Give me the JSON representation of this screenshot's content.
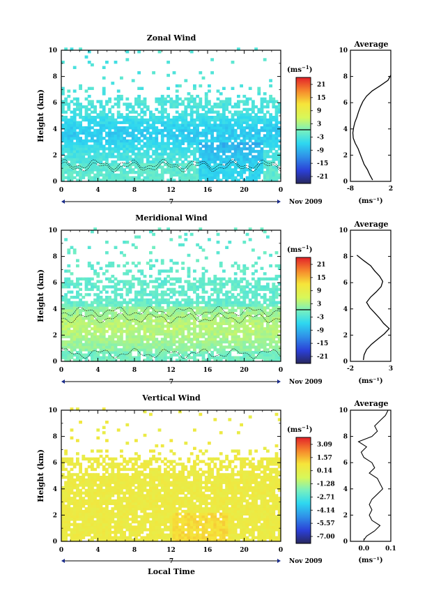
{
  "xlabel": "Local Time",
  "date_label": "Nov 2009",
  "day_label": "7",
  "chart_data": [
    {
      "type": "heatmap",
      "title": "Zonal Wind",
      "ylabel": "Height (km)",
      "xlim": [
        0,
        24
      ],
      "ylim": [
        0,
        10
      ],
      "x_ticks": [
        "0",
        "4",
        "8",
        "12",
        "16",
        "20",
        "0"
      ],
      "y_ticks": [
        "0",
        "2",
        "4",
        "6",
        "8",
        "10"
      ],
      "colorbar": {
        "unit_base": "(ms",
        "unit_exp": "−1",
        "unit_close": ")",
        "ticks": [
          "21",
          "15",
          "9",
          "3",
          "-3",
          "-9",
          "-15",
          "-21"
        ],
        "range": [
          -24,
          24
        ]
      },
      "avg": {
        "title": "Average",
        "xunit": "(ms⁻¹)",
        "xticks": [
          "-8",
          "2"
        ],
        "xlim": [
          -8,
          2
        ],
        "yticks": [
          "0",
          "2",
          "4",
          "6",
          "8",
          "10"
        ],
        "profile": [
          [
            0.1,
            -2.5
          ],
          [
            0.5,
            -3.2
          ],
          [
            0.9,
            -3.8
          ],
          [
            1.3,
            -4.6
          ],
          [
            1.7,
            -5.1
          ],
          [
            2.1,
            -5.6
          ],
          [
            2.5,
            -6.1
          ],
          [
            2.9,
            -6.8
          ],
          [
            3.3,
            -7.3
          ],
          [
            3.7,
            -7.4
          ],
          [
            4.1,
            -7.2
          ],
          [
            4.5,
            -6.9
          ],
          [
            4.9,
            -6.4
          ],
          [
            5.3,
            -6.0
          ],
          [
            5.7,
            -5.5
          ],
          [
            6.1,
            -4.9
          ],
          [
            6.5,
            -4.0
          ],
          [
            6.9,
            -2.6
          ],
          [
            7.3,
            -0.6
          ],
          [
            7.7,
            1.3
          ],
          [
            8.1,
            2.0
          ]
        ]
      }
    },
    {
      "type": "heatmap",
      "title": "Meridional Wind",
      "ylabel": "Height (km)",
      "xlim": [
        0,
        24
      ],
      "ylim": [
        0,
        10
      ],
      "x_ticks": [
        "0",
        "4",
        "8",
        "12",
        "16",
        "20",
        "0"
      ],
      "y_ticks": [
        "0",
        "2",
        "4",
        "6",
        "8",
        "10"
      ],
      "colorbar": {
        "unit_base": "(ms",
        "unit_exp": "−1",
        "unit_close": ")",
        "ticks": [
          "21",
          "15",
          "9",
          "3",
          "-3",
          "-9",
          "-15",
          "-21"
        ],
        "range": [
          -24,
          24
        ]
      },
      "avg": {
        "title": "Average",
        "xunit": "(ms⁻¹)",
        "xticks": [
          "-2",
          "3"
        ],
        "xlim": [
          -2,
          3
        ],
        "yticks": [
          "0",
          "2",
          "4",
          "6",
          "8",
          "10"
        ],
        "profile": [
          [
            0.1,
            -0.4
          ],
          [
            0.5,
            -0.3
          ],
          [
            0.9,
            0.0
          ],
          [
            1.3,
            0.6
          ],
          [
            1.7,
            1.4
          ],
          [
            2.1,
            2.2
          ],
          [
            2.5,
            2.8
          ],
          [
            2.9,
            2.1
          ],
          [
            3.3,
            1.6
          ],
          [
            3.7,
            1.0
          ],
          [
            4.1,
            0.4
          ],
          [
            4.5,
            0.0
          ],
          [
            4.9,
            0.5
          ],
          [
            5.3,
            1.2
          ],
          [
            5.7,
            1.8
          ],
          [
            6.1,
            2.0
          ],
          [
            6.5,
            1.6
          ],
          [
            6.9,
            1.0
          ],
          [
            7.3,
            0.5
          ],
          [
            7.7,
            -0.4
          ],
          [
            8.1,
            -1.2
          ]
        ]
      }
    },
    {
      "type": "heatmap",
      "title": "Vertical Wind",
      "ylabel": "Height (km)",
      "xlim": [
        0,
        24
      ],
      "ylim": [
        0,
        10
      ],
      "x_ticks": [
        "0",
        "4",
        "8",
        "12",
        "16",
        "20",
        "0"
      ],
      "y_ticks": [
        "0",
        "2",
        "4",
        "6",
        "8",
        "10"
      ],
      "colorbar": {
        "unit_base": "(ms",
        "unit_exp": "−1",
        "unit_close": ")",
        "ticks": [
          "3.09",
          "1.57",
          "0.14",
          "-1.28",
          "-2.71",
          "-4.14",
          "-5.57",
          "-7.00"
        ],
        "range": [
          -7.7,
          3.8
        ]
      },
      "avg": {
        "title": "Average",
        "xunit": "(ms⁻¹)",
        "xticks": [
          "0.0",
          "0.1"
        ],
        "xlim": [
          -0.05,
          0.1
        ],
        "yticks": [
          "0",
          "2",
          "4",
          "6",
          "8",
          "10"
        ],
        "profile": [
          [
            0.1,
            0.0
          ],
          [
            0.4,
            0.01
          ],
          [
            0.8,
            0.04
          ],
          [
            1.2,
            0.06
          ],
          [
            1.6,
            0.03
          ],
          [
            2.0,
            0.02
          ],
          [
            2.4,
            0.03
          ],
          [
            2.8,
            0.02
          ],
          [
            3.2,
            0.03
          ],
          [
            3.6,
            0.05
          ],
          [
            4.0,
            0.07
          ],
          [
            4.4,
            0.06
          ],
          [
            4.8,
            0.05
          ],
          [
            5.2,
            0.02
          ],
          [
            5.6,
            0.04
          ],
          [
            6.0,
            0.03
          ],
          [
            6.4,
            0.0
          ],
          [
            6.8,
            -0.01
          ],
          [
            7.2,
            0.01
          ],
          [
            7.6,
            -0.02
          ],
          [
            8.0,
            0.03
          ],
          [
            8.4,
            0.05
          ],
          [
            8.8,
            0.04
          ],
          [
            9.2,
            0.06
          ],
          [
            9.6,
            0.08
          ],
          [
            10.0,
            0.09
          ]
        ]
      }
    }
  ]
}
